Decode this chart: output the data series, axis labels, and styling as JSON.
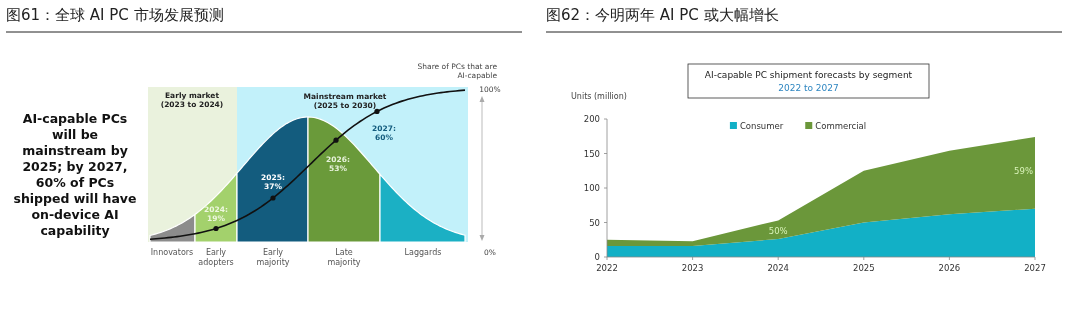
{
  "chart_data": [
    {
      "type": "other",
      "title": "图61：全球 AI PC 市场发展预测",
      "categories": [
        "Innovators",
        "Early adopters",
        "Early majority",
        "Late majority",
        "Laggards"
      ],
      "annotations": [
        "AI-capable PCs will be mainstream by 2025; by 2027, 60% of PCs shipped will have on-device AI capability",
        "Early market (2023 to 2024)",
        "Mainstream market (2025 to 2030)",
        "Share of PCs that are AI-capable",
        "100%",
        "0%",
        "2024: 19%",
        "2025: 37%",
        "2026: 53%",
        "2027: 60%"
      ]
    },
    {
      "type": "area",
      "stacked": true,
      "title": "图62：今明两年 AI PC 或大幅增长",
      "subtitle": "AI-capable PC shipment forecasts by segment",
      "ylabel": "Units (million)",
      "categories": [
        "2022",
        "2023",
        "2024",
        "2025",
        "2026",
        "2027"
      ],
      "series": [
        {
          "name": "Consumer",
          "color": "#12b0c6",
          "values": [
            16,
            16,
            26,
            50,
            62,
            70
          ]
        },
        {
          "name": "Commercial",
          "color": "#6b973a",
          "values": [
            9,
            7,
            27,
            75,
            92,
            104
          ]
        }
      ],
      "ylim": [
        0,
        200
      ],
      "yticks": [
        0,
        50,
        100,
        150,
        200
      ],
      "legend": "top",
      "annotations": [
        "2022 to 2027",
        "50%",
        "59%"
      ]
    }
  ]
}
